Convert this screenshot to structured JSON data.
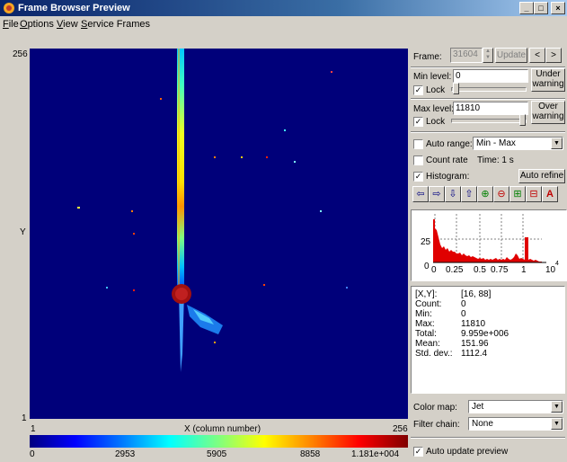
{
  "window": {
    "title": "Frame Browser Preview",
    "minimize": "_",
    "maximize": "□",
    "close": "×"
  },
  "menu": [
    "File",
    "Options",
    "View",
    "Service Frames"
  ],
  "plot": {
    "y_top": "256",
    "y_axis": "Y",
    "y_bottom": "1",
    "x_left": "1",
    "x_axis": "X (column number)",
    "x_right": "256"
  },
  "colorbar": {
    "ticks": [
      "0",
      "2953",
      "5905",
      "8858",
      "1.181e+004"
    ]
  },
  "panel": {
    "frame_label": "Frame:",
    "frame_value": "31604",
    "update_label": "Update",
    "prev_label": "<",
    "next_label": ">",
    "min_level_label": "Min level:",
    "min_level_value": "0",
    "under_warning_label": "Under\nwarning",
    "lock_label": "Lock",
    "max_level_label": "Max level:",
    "max_level_value": "11810",
    "over_warning_label": "Over\nwarning",
    "auto_range_label": "Auto range:",
    "auto_range_value": "Min - Max",
    "count_rate_label": "Count rate",
    "time_label": "Time: 1 s",
    "histogram_label": "Histogram:",
    "auto_refine_label": "Auto refine",
    "hist_y_labels": [
      "25",
      "0"
    ],
    "hist_x_labels": [
      "0",
      "0.25",
      "0.5",
      "0.75",
      "1",
      "10"
    ],
    "hist_x_exp": "4",
    "stats": [
      {
        "label": "[X,Y]:",
        "value": "[16, 88]"
      },
      {
        "label": "Count:",
        "value": "0"
      },
      {
        "label": "Min:",
        "value": "0"
      },
      {
        "label": "Max:",
        "value": "11810"
      },
      {
        "label": "Total:",
        "value": "9.959e+006"
      },
      {
        "label": "Mean:",
        "value": "151.96"
      },
      {
        "label": "Std. dev.:",
        "value": "1112.4"
      }
    ],
    "color_map_label": "Color map:",
    "color_map_value": "Jet",
    "filter_chain_label": "Filter chain:",
    "filter_chain_value": "None",
    "auto_update_label": "Auto update preview"
  },
  "checks": {
    "min_lock": true,
    "max_lock": true,
    "auto_range": false,
    "count_rate": false,
    "histogram": true,
    "auto_update": true
  },
  "colors": {
    "plot_background": "#00007a",
    "histogram_bar": "#e00000"
  }
}
